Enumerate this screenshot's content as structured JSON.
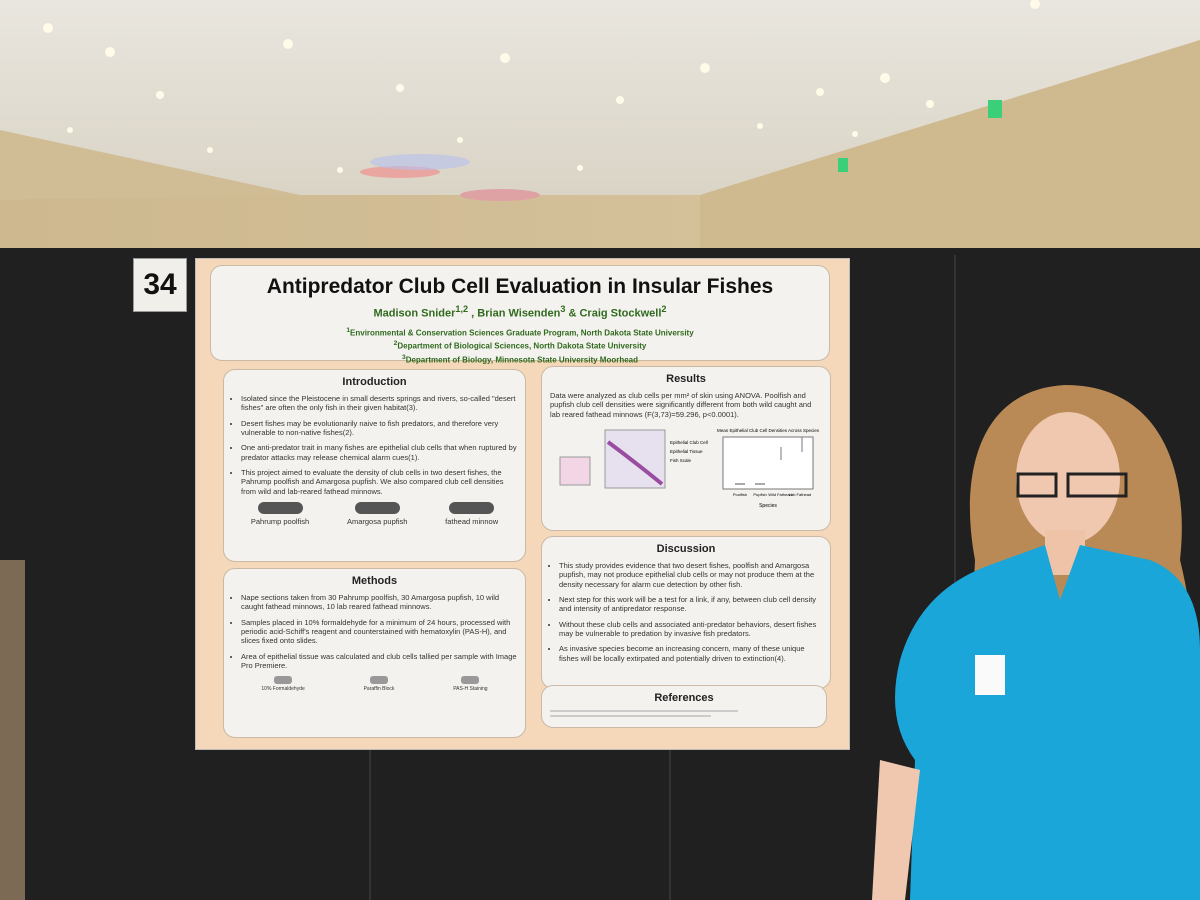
{
  "board_number": "34",
  "poster": {
    "title": "Antipredator Club Cell Evaluation in Insular Fishes",
    "authors": [
      {
        "name": "Madison Snider",
        "sup": "1,2",
        "sep": " , "
      },
      {
        "name": "Brian Wisenden",
        "sup": "3",
        "sep": " & "
      },
      {
        "name": "Craig Stockwell",
        "sup": "2"
      }
    ],
    "affiliations": [
      {
        "sup": "1",
        "text": "Environmental & Conservation Sciences Graduate Program, North Dakota State University"
      },
      {
        "sup": "2",
        "text": "Department of Biological Sciences, North Dakota State University"
      },
      {
        "sup": "3",
        "text": "Department of Biology, Minnesota State University Moorhead"
      }
    ],
    "introduction": {
      "heading": "Introduction",
      "bullets": [
        "Isolated since the Pleistocene in small deserts springs and rivers, so-called \"desert fishes\" are often the only fish in their given habitat(3).",
        "Desert fishes may be evolutionarily naive to fish predators, and therefore very vulnerable to non-native fishes(2).",
        "One anti-predator trait in many fishes are epithelial club cells that when ruptured by predator attacks may release chemical alarm cues(1).",
        "This project aimed to evaluate the density of club cells in two desert fishes, the Pahrump poolfish and Amargosa pupfish. We also compared club cell densities from wild and lab-reared fathead minnows."
      ],
      "fish": [
        "Pahrump poolfish",
        "Amargosa pupfish",
        "fathead minnow"
      ]
    },
    "methods": {
      "heading": "Methods",
      "bullets": [
        "Nape sections taken from 30 Pahrump poolfish, 30 Amargosa pupfish, 10 wild caught fathead minnows, 10 lab reared fathead minnows.",
        "Samples placed in 10% formaldehyde for a minimum of 24 hours, processed with periodic acid-Schiff's reagent and counterstained with hematoxylin (PAS-H), and slices fixed onto slides.",
        "Area of epithelial tissue was calculated and club cells tallied per sample with Image Pro Premiere."
      ],
      "steps": [
        "10% Formaldehyde",
        "Paraffin Block",
        "PAS-H Staining"
      ]
    },
    "results": {
      "heading": "Results",
      "text": "Data were analyzed as club cells per mm² of skin using ANOVA. Poolfish and pupfish club cell densities were significantly different from both wild caught and lab reared fathead minnows (F(3,73)=59.296, p<0.0001).",
      "figure_labels": [
        "Epithelial Club Cell",
        "Epithelial Tissue",
        "Fish Scale"
      ],
      "chart_title": "Mean Epithelial Club Cell Densities Across Species",
      "chart_categories": [
        "Poolfish",
        "Pupfish",
        "Wild Fathead",
        "Lab Fathead"
      ],
      "chart_xlabel": "Species"
    },
    "discussion": {
      "heading": "Discussion",
      "bullets": [
        "This study provides evidence that two desert fishes, poolfish and Amargosa pupfish, may not produce epithelial club cells or may not produce them at the density necessary for alarm cue detection by other fish.",
        "Next step for this work will be a test for a link, if any, between club cell density and intensity of antipredator response.",
        "Without these club cells and associated anti-predator behaviors, desert fishes may be vulnerable to predation by invasive fish predators.",
        "As invasive species become an increasing concern, many of these unique fishes will be locally extirpated and potentially driven to extinction(4)."
      ]
    },
    "references": {
      "heading": "References"
    }
  }
}
